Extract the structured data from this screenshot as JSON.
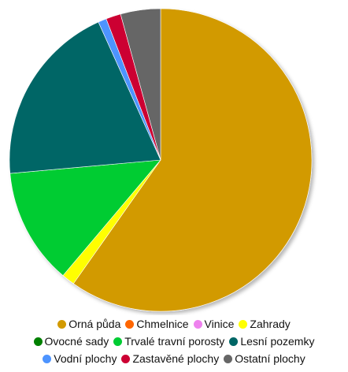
{
  "chart_data": {
    "type": "pie",
    "title": "",
    "legend_placement": "bottom",
    "series": [
      {
        "labels": [
          "Orná půda",
          "Chmelnice",
          "Vinice",
          "Zahrady",
          "Ovocné sady",
          "Trvalé travní porosty",
          "Lesní pozemky",
          "Vodní plochy",
          "Zastavěné plochy",
          "Ostatní plochy"
        ],
        "values": [
          60.2,
          0,
          0,
          1.4,
          0,
          12.5,
          19.8,
          0.9,
          1.6,
          4.3
        ],
        "colors": [
          "#d29a00",
          "#ff6600",
          "#ee82ee",
          "#ffff00",
          "#008000",
          "#00cc33",
          "#006666",
          "#4d94ff",
          "#cc0033",
          "#666666"
        ]
      }
    ]
  },
  "legend": {
    "rows": [
      [
        0,
        1,
        2,
        3
      ],
      [
        4,
        5,
        6
      ],
      [
        7,
        8,
        9
      ]
    ]
  }
}
